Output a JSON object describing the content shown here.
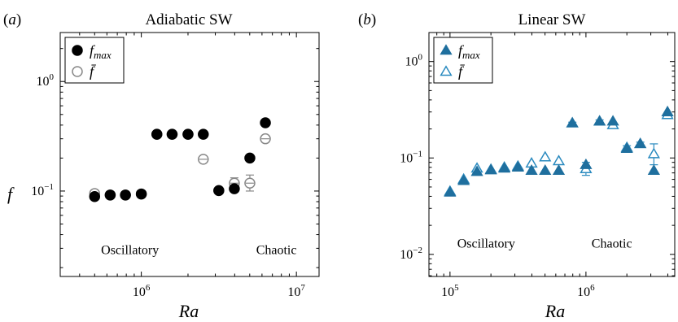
{
  "chart_data": [
    {
      "panel_label": "(a)",
      "title": "Adiabatic SW",
      "type": "scatter",
      "xlabel": "Ra",
      "ylabel": "f",
      "xscale": "log",
      "yscale": "log",
      "xlim": [
        300000,
        14000000
      ],
      "ylim": [
        0.0166,
        2.8
      ],
      "xticks": [
        {
          "value": 1000000,
          "base": "10",
          "exp": "6"
        },
        {
          "value": 10000000,
          "base": "10",
          "exp": "7"
        }
      ],
      "yticks": [
        {
          "value": 0.1,
          "base": "10",
          "exp": "−1"
        },
        {
          "value": 1,
          "base": "10",
          "exp": "0"
        }
      ],
      "annotations": [
        {
          "text": "Oscillatory",
          "x": 550000,
          "y": 0.0265
        },
        {
          "text": "Chaotic",
          "x": 5500000,
          "y": 0.0265
        }
      ],
      "legend": {
        "position": "top-left",
        "entries": [
          "f_max",
          "f̄"
        ]
      },
      "series": [
        {
          "name": "f_max",
          "marker": "filled-circle",
          "color": "#000000",
          "x": [
            500000,
            630000,
            790000,
            1000000,
            1260000,
            1580000,
            2000000,
            2510000,
            3160000,
            3980000,
            5010000,
            6310000
          ],
          "y": [
            0.089,
            0.092,
            0.092,
            0.094,
            0.33,
            0.33,
            0.33,
            0.33,
            0.101,
            0.105,
            0.2,
            0.42
          ]
        },
        {
          "name": "f_bar",
          "marker": "open-circle",
          "color": "#888888",
          "x": [
            500000,
            630000,
            790000,
            1000000,
            1260000,
            1580000,
            2000000,
            2510000,
            3160000,
            3980000,
            5010000,
            6310000
          ],
          "y": [
            0.095,
            0.092,
            0.092,
            0.094,
            0.33,
            0.33,
            0.33,
            0.195,
            0.101,
            0.118,
            0.118,
            0.3
          ],
          "err_low": [
            0.095,
            0.092,
            0.092,
            0.094,
            0.33,
            0.33,
            0.33,
            0.195,
            0.101,
            0.104,
            0.1,
            0.3
          ],
          "err_high": [
            0.095,
            0.092,
            0.092,
            0.094,
            0.33,
            0.33,
            0.33,
            0.195,
            0.101,
            0.132,
            0.14,
            0.3
          ]
        }
      ]
    },
    {
      "panel_label": "(b)",
      "title": "Linear SW",
      "type": "scatter",
      "xlabel": "Ra",
      "ylabel": "",
      "xscale": "log",
      "yscale": "log",
      "xlim": [
        70000,
        4500000
      ],
      "ylim": [
        0.0059,
        2.0
      ],
      "xticks": [
        {
          "value": 100000,
          "base": "10",
          "exp": "5"
        },
        {
          "value": 1000000,
          "base": "10",
          "exp": "6"
        }
      ],
      "yticks": [
        {
          "value": 0.01,
          "base": "10",
          "exp": "−2"
        },
        {
          "value": 0.1,
          "base": "10",
          "exp": "−1"
        },
        {
          "value": 1,
          "base": "10",
          "exp": "0"
        }
      ],
      "annotations": [
        {
          "text": "Oscillatory",
          "x": 113000,
          "y": 0.0118
        },
        {
          "text": "Chaotic",
          "x": 1100000,
          "y": 0.0118
        }
      ],
      "legend": {
        "position": "top-left",
        "entries": [
          "f_max",
          "f̄"
        ]
      },
      "series": [
        {
          "name": "f_max",
          "marker": "filled-triangle",
          "color": "#1f6f9e",
          "x": [
            100000,
            126000,
            158000,
            200000,
            251000,
            316000,
            398000,
            501000,
            631000,
            794000,
            1000000,
            1260000,
            1580000,
            2000000,
            2510000,
            3160000,
            3980000
          ],
          "y": [
            0.044,
            0.058,
            0.072,
            0.075,
            0.078,
            0.08,
            0.074,
            0.074,
            0.074,
            0.23,
            0.085,
            0.24,
            0.24,
            0.125,
            0.14,
            0.074,
            0.3
          ]
        },
        {
          "name": "f_bar",
          "marker": "open-triangle",
          "color": "#2a8abf",
          "x": [
            100000,
            126000,
            158000,
            200000,
            251000,
            316000,
            398000,
            501000,
            631000,
            794000,
            1000000,
            1260000,
            1580000,
            2000000,
            2510000,
            3160000,
            3980000
          ],
          "y": [
            0.045,
            0.06,
            0.078,
            0.076,
            0.08,
            0.082,
            0.088,
            0.102,
            0.093,
            0.23,
            0.077,
            0.24,
            0.22,
            0.128,
            0.14,
            0.11,
            0.28
          ],
          "err_low": [
            0.045,
            0.06,
            0.078,
            0.076,
            0.08,
            0.082,
            0.088,
            0.102,
            0.093,
            0.225,
            0.066,
            0.232,
            0.21,
            0.122,
            0.134,
            0.085,
            0.27
          ],
          "err_high": [
            0.045,
            0.06,
            0.078,
            0.076,
            0.08,
            0.082,
            0.088,
            0.102,
            0.093,
            0.235,
            0.09,
            0.248,
            0.23,
            0.134,
            0.146,
            0.14,
            0.29
          ]
        }
      ]
    }
  ]
}
